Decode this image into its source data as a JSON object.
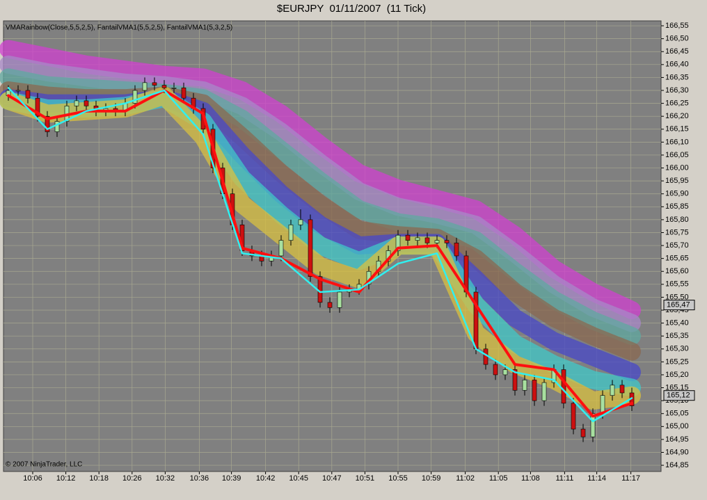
{
  "chart_data": {
    "type": "candlestick",
    "title": "$EURJPY  01/11/2007  (11 Tick)",
    "indicator_label": "VMARainbow(Close,5,5,2,5), FantailVMA1(5,5,2,5), FantailVMA1(5,3,2,5)",
    "copyright": "© 2007 NinjaTrader, LLC",
    "up_color": "#a8e0a0",
    "down_color": "#cc1010",
    "grid": true,
    "xlim": [
      -0.5,
      67
    ],
    "ylim": [
      164.826,
      166.569
    ],
    "xticks": [
      {
        "value": 2.5,
        "label": "10:06"
      },
      {
        "value": 5.9,
        "label": "10:12"
      },
      {
        "value": 9.3,
        "label": "10:18"
      },
      {
        "value": 12.7,
        "label": "10:26"
      },
      {
        "value": 16.1,
        "label": "10:32"
      },
      {
        "value": 19.6,
        "label": "10:36"
      },
      {
        "value": 22.9,
        "label": "10:39"
      },
      {
        "value": 26.4,
        "label": "10:42"
      },
      {
        "value": 29.8,
        "label": "10:45"
      },
      {
        "value": 33.2,
        "label": "10:47"
      },
      {
        "value": 36.6,
        "label": "10:51"
      },
      {
        "value": 40,
        "label": "10:55"
      },
      {
        "value": 43.4,
        "label": "10:59"
      },
      {
        "value": 46.9,
        "label": "11:02"
      },
      {
        "value": 50.3,
        "label": "11:05"
      },
      {
        "value": 53.6,
        "label": "11:08"
      },
      {
        "value": 57.1,
        "label": "11:11"
      },
      {
        "value": 60.4,
        "label": "11:14"
      },
      {
        "value": 63.9,
        "label": "11:17"
      }
    ],
    "yticks": [
      {
        "value": 166.55,
        "label": "166,55"
      },
      {
        "value": 166.5,
        "label": "166,50"
      },
      {
        "value": 166.45,
        "label": "166,45"
      },
      {
        "value": 166.4,
        "label": "166,40"
      },
      {
        "value": 166.35,
        "label": "166,35"
      },
      {
        "value": 166.3,
        "label": "166,30"
      },
      {
        "value": 166.25,
        "label": "166,25"
      },
      {
        "value": 166.2,
        "label": "166,20"
      },
      {
        "value": 166.15,
        "label": "166,15"
      },
      {
        "value": 166.1,
        "label": "166,10"
      },
      {
        "value": 166.05,
        "label": "166,05"
      },
      {
        "value": 166.0,
        "label": "166,00"
      },
      {
        "value": 165.95,
        "label": "165,95"
      },
      {
        "value": 165.9,
        "label": "165,90"
      },
      {
        "value": 165.85,
        "label": "165,85"
      },
      {
        "value": 165.8,
        "label": "165,80"
      },
      {
        "value": 165.75,
        "label": "165,75"
      },
      {
        "value": 165.7,
        "label": "165,70"
      },
      {
        "value": 165.65,
        "label": "165,65"
      },
      {
        "value": 165.6,
        "label": "165,60"
      },
      {
        "value": 165.55,
        "label": "165,55"
      },
      {
        "value": 165.5,
        "label": "165,50"
      },
      {
        "value": 165.45,
        "label": "165,45"
      },
      {
        "value": 165.4,
        "label": "165,40"
      },
      {
        "value": 165.35,
        "label": "165,35"
      },
      {
        "value": 165.3,
        "label": "165,30"
      },
      {
        "value": 165.25,
        "label": "165,25"
      },
      {
        "value": 165.2,
        "label": "165,20"
      },
      {
        "value": 165.15,
        "label": "165,15"
      },
      {
        "value": 165.1,
        "label": "165,10"
      },
      {
        "value": 165.05,
        "label": "165,05"
      },
      {
        "value": 165.0,
        "label": "165,00"
      },
      {
        "value": 164.95,
        "label": "164,95"
      },
      {
        "value": 164.9,
        "label": "164,90"
      },
      {
        "value": 164.85,
        "label": "164,85"
      }
    ],
    "price_labels": [
      {
        "value": 165.47,
        "label": "165,47"
      },
      {
        "value": 165.12,
        "label": "165,12"
      }
    ],
    "open": [
      166.28,
      166.3,
      166.3,
      166.27,
      166.2,
      166.14,
      166.18,
      166.24,
      166.26,
      166.24,
      166.22,
      166.23,
      166.22,
      166.25,
      166.3,
      166.33,
      166.32,
      166.31,
      166.31,
      166.27,
      166.23,
      166.15,
      166.0,
      165.9,
      165.78,
      165.68,
      165.66,
      165.64,
      165.66,
      165.72,
      165.78,
      165.8,
      165.58,
      165.48,
      165.46,
      165.52,
      165.53,
      165.55,
      165.6,
      165.64,
      165.68,
      165.74,
      165.72,
      165.73,
      165.71,
      165.72,
      165.71,
      165.66,
      165.52,
      165.3,
      165.24,
      165.2,
      165.22,
      165.14,
      165.18,
      165.1,
      165.17,
      165.22,
      165.09,
      164.99,
      164.96,
      165.05,
      165.12,
      165.16,
      165.13
    ],
    "high": [
      166.32,
      166.32,
      166.32,
      166.29,
      166.22,
      166.2,
      166.26,
      166.28,
      166.28,
      166.26,
      166.25,
      166.25,
      166.27,
      166.32,
      166.35,
      166.35,
      166.34,
      166.33,
      166.33,
      166.29,
      166.25,
      166.17,
      166.02,
      165.92,
      165.8,
      165.7,
      165.68,
      165.68,
      165.74,
      165.8,
      165.84,
      165.82,
      165.6,
      165.5,
      165.54,
      165.55,
      165.57,
      165.62,
      165.66,
      165.7,
      165.76,
      165.76,
      165.75,
      165.75,
      165.74,
      165.74,
      165.73,
      165.68,
      165.54,
      165.32,
      165.26,
      165.24,
      165.24,
      165.2,
      165.2,
      165.19,
      165.24,
      165.24,
      165.11,
      165.01,
      165.07,
      165.14,
      165.18,
      165.18,
      165.15
    ],
    "low": [
      166.26,
      166.28,
      166.25,
      166.18,
      166.12,
      166.12,
      166.16,
      166.22,
      166.22,
      166.2,
      166.2,
      166.2,
      166.2,
      166.23,
      166.28,
      166.3,
      166.29,
      166.29,
      166.25,
      166.21,
      166.13,
      165.98,
      165.88,
      165.76,
      165.66,
      165.64,
      165.62,
      165.62,
      165.64,
      165.7,
      165.76,
      165.56,
      165.46,
      165.44,
      165.44,
      165.5,
      165.51,
      165.53,
      165.58,
      165.62,
      165.66,
      165.7,
      165.7,
      165.69,
      165.69,
      165.69,
      165.64,
      165.5,
      165.28,
      165.22,
      165.18,
      165.18,
      165.12,
      165.12,
      165.08,
      165.08,
      165.15,
      165.07,
      164.97,
      164.94,
      164.94,
      165.03,
      165.1,
      165.11,
      165.06
    ],
    "close": [
      166.3,
      166.3,
      166.27,
      166.2,
      166.14,
      166.18,
      166.24,
      166.26,
      166.24,
      166.22,
      166.23,
      166.22,
      166.25,
      166.3,
      166.33,
      166.32,
      166.31,
      166.31,
      166.27,
      166.23,
      166.15,
      166.0,
      165.9,
      165.78,
      165.68,
      165.66,
      165.64,
      165.66,
      165.72,
      165.78,
      165.8,
      165.58,
      165.48,
      165.46,
      165.52,
      165.53,
      165.55,
      165.6,
      165.64,
      165.68,
      165.74,
      165.72,
      165.73,
      165.71,
      165.72,
      165.71,
      165.66,
      165.52,
      165.3,
      165.24,
      165.2,
      165.22,
      165.14,
      165.18,
      165.1,
      165.17,
      165.22,
      165.09,
      164.99,
      164.96,
      165.05,
      165.12,
      165.16,
      165.13,
      165.08
    ],
    "line_x": [
      0,
      4,
      8,
      12,
      16,
      20,
      24,
      28,
      32,
      36,
      40,
      44,
      48,
      52,
      56,
      60,
      64
    ],
    "bands": [
      {
        "color": "#d040d0",
        "values": [
          166.46,
          166.43,
          166.4,
          166.38,
          166.36,
          166.35,
          166.3,
          166.21,
          166.09,
          165.98,
          165.92,
          165.88,
          165.84,
          165.74,
          165.61,
          165.52,
          165.45
        ]
      },
      {
        "color": "#a888c8",
        "values": [
          166.4,
          166.37,
          166.35,
          166.33,
          166.32,
          166.3,
          166.24,
          166.14,
          166.02,
          165.91,
          165.85,
          165.82,
          165.78,
          165.67,
          165.55,
          165.46,
          165.4
        ]
      },
      {
        "color": "#5fa8a0",
        "values": [
          166.35,
          166.32,
          166.31,
          166.3,
          166.29,
          166.27,
          166.19,
          166.07,
          165.95,
          165.84,
          165.79,
          165.77,
          165.72,
          165.6,
          165.49,
          165.41,
          165.35
        ]
      },
      {
        "color": "#8a6850",
        "values": [
          166.3,
          166.28,
          166.27,
          166.27,
          166.28,
          166.25,
          166.12,
          165.98,
          165.86,
          165.76,
          165.74,
          165.73,
          165.65,
          165.52,
          165.42,
          165.35,
          165.29
        ]
      },
      {
        "color": "#4848c8",
        "values": [
          166.27,
          166.25,
          166.25,
          166.25,
          166.27,
          166.22,
          166.05,
          165.9,
          165.78,
          165.7,
          165.71,
          165.71,
          165.57,
          165.42,
          165.33,
          165.27,
          165.21
        ]
      },
      {
        "color": "#40c8c8",
        "values": [
          166.26,
          166.23,
          166.23,
          166.24,
          166.27,
          166.18,
          165.96,
          165.82,
          165.7,
          165.64,
          165.7,
          165.7,
          165.47,
          165.32,
          165.24,
          165.18,
          165.15
        ]
      },
      {
        "color": "#d8c040",
        "values": [
          166.26,
          166.21,
          166.22,
          166.23,
          166.28,
          166.12,
          165.86,
          165.74,
          165.62,
          165.57,
          165.7,
          165.7,
          165.36,
          165.24,
          165.18,
          165.1,
          165.12
        ]
      }
    ],
    "lines": [
      {
        "color": "#ff1010",
        "values": [
          166.28,
          166.19,
          166.22,
          166.22,
          166.3,
          166.21,
          165.69,
          165.65,
          165.57,
          165.52,
          165.69,
          165.7,
          165.47,
          165.24,
          165.22,
          165.04,
          165.09
        ]
      },
      {
        "color": "#30f0f0",
        "values": [
          166.31,
          166.15,
          166.22,
          166.25,
          166.3,
          166.13,
          165.67,
          165.65,
          165.52,
          165.53,
          165.63,
          165.67,
          165.3,
          165.21,
          165.18,
          165.02,
          165.11
        ]
      }
    ]
  }
}
